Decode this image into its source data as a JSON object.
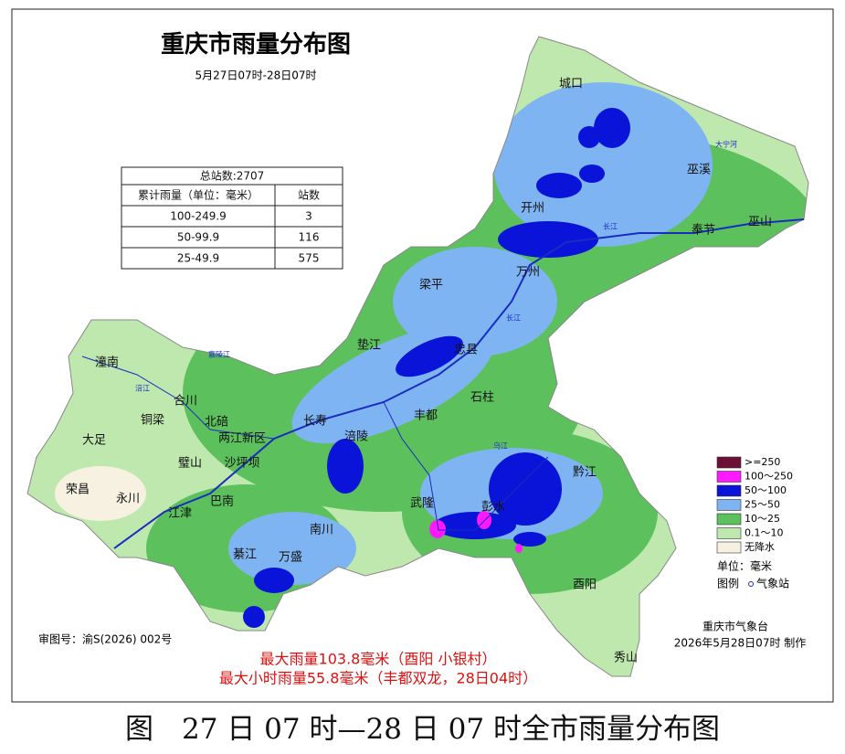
{
  "map": {
    "title": "重庆市雨量分布图",
    "subtitle": "5月27日07时-28日07时",
    "stats_table": {
      "total": "总站数:2707",
      "headers": [
        "累计雨量（单位：毫米）",
        "站数"
      ],
      "rows": [
        [
          "100-249.9",
          3
        ],
        [
          "50-99.9",
          116
        ],
        [
          "25-49.9",
          575
        ]
      ]
    },
    "legend": {
      "items": [
        {
          "label": ">=250",
          "color": "#6b1034"
        },
        {
          "label": "100～250",
          "color": "#ff19ff"
        },
        {
          "label": "50～100",
          "color": "#0a14d8"
        },
        {
          "label": "25～50",
          "color": "#7fb4f2"
        },
        {
          "label": "10～25",
          "color": "#5cc15c"
        },
        {
          "label": "0.1～10",
          "color": "#bfe8ae"
        },
        {
          "label": "无降水",
          "color": "#f6f1e1"
        }
      ],
      "unit": "单位：毫米",
      "symbol_title": "图例",
      "station": "气象站"
    },
    "places": [
      "城口",
      "巫溪",
      "开州",
      "奉节",
      "巫山",
      "万州",
      "梁平",
      "垫江",
      "忠县",
      "石柱",
      "丰都",
      "长寿",
      "涪陵",
      "黔江",
      "武隆",
      "彭水",
      "酉阳",
      "秀山",
      "南川",
      "万盛",
      "綦江",
      "江津",
      "巴南",
      "永川",
      "荣昌",
      "大足",
      "铜梁",
      "潼南",
      "合川",
      "北碚",
      "两江新区",
      "璧山",
      "沙坪坝"
    ],
    "rivers": [
      "大宁河",
      "长江",
      "长江",
      "嘉陵江",
      "涪江",
      "乌江"
    ],
    "approval": "审图号：渝S(2026) 002号",
    "highlights": [
      "最大雨量103.8毫米（酉阳 小银村）",
      "最大小时雨量55.8毫米（丰都双龙，28日04时）"
    ],
    "issuer": "重庆市气象台",
    "issue_time": "2026年5月28日07时  制作"
  },
  "caption": "图　27 日 07 时—28 日 07 时全市雨量分布图"
}
